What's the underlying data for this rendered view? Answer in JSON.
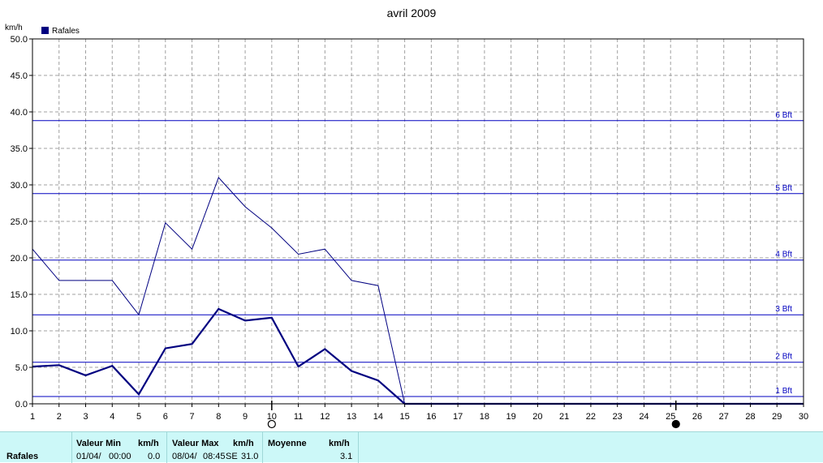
{
  "chart_data": {
    "type": "line",
    "title": "avril 2009",
    "ylabel": "km/h",
    "xlabel": "",
    "legend": {
      "position": "top-left",
      "entries": [
        {
          "label": "Rafales",
          "color": "#000080"
        }
      ]
    },
    "grid": true,
    "xlim": [
      1,
      30
    ],
    "ylim": [
      0,
      50
    ],
    "x_ticks": [
      "1",
      "2",
      "3",
      "4",
      "5",
      "6",
      "7",
      "8",
      "9",
      "10",
      "11",
      "12",
      "13",
      "14",
      "15",
      "16",
      "17",
      "18",
      "19",
      "20",
      "21",
      "22",
      "23",
      "24",
      "25",
      "26",
      "27",
      "28",
      "29",
      "30"
    ],
    "y_ticks": [
      "0.0",
      "5.0",
      "10.0",
      "15.0",
      "20.0",
      "25.0",
      "30.0",
      "35.0",
      "40.0",
      "45.0",
      "50.0"
    ],
    "series": [
      {
        "name": "",
        "style": "thin",
        "color": "#000080",
        "x": [
          1,
          2,
          3,
          4,
          5,
          6,
          7,
          8,
          9,
          10,
          11,
          12,
          13,
          14,
          15,
          30
        ],
        "y": [
          21.2,
          16.9,
          16.9,
          16.9,
          12.2,
          24.8,
          21.2,
          31.0,
          27.0,
          24.1,
          20.5,
          21.2,
          16.9,
          16.2,
          0,
          0
        ]
      },
      {
        "name": "",
        "style": "thick",
        "color": "#000080",
        "x": [
          1,
          2,
          3,
          4,
          5,
          6,
          7,
          8,
          9,
          10,
          11,
          12,
          13,
          14,
          15,
          30
        ],
        "y": [
          5.1,
          5.3,
          3.9,
          5.2,
          1.3,
          7.6,
          8.2,
          13.0,
          11.4,
          11.8,
          5.1,
          7.5,
          4.5,
          3.2,
          0,
          0
        ]
      }
    ],
    "reference_lines": [
      {
        "label": "1 Bft",
        "y": 1.0
      },
      {
        "label": "2 Bft",
        "y": 5.7
      },
      {
        "label": "3 Bft",
        "y": 12.2
      },
      {
        "label": "4 Bft",
        "y": 19.7
      },
      {
        "label": "5 Bft",
        "y": 28.8
      },
      {
        "label": "6 Bft",
        "y": 38.8
      }
    ],
    "moon_markers": [
      {
        "x": 10,
        "phase": "full-moon"
      },
      {
        "x": 25.2,
        "phase": "new-moon"
      }
    ],
    "colors": {
      "series": "#000080",
      "reference": "#0000c0",
      "grid": "#a0a0a0",
      "axis": "#000000"
    }
  },
  "stats": {
    "name": "Rafales",
    "min_header": "Valeur Min",
    "min_unit": "km/h",
    "min_date": "01/04/",
    "min_time": "00:00",
    "min_value": "0.0",
    "max_header": "Valeur Max",
    "max_unit": "km/h",
    "max_date": "08/04/",
    "max_time": "08:45",
    "max_dir": "SE",
    "max_value": "31.0",
    "avg_header": "Moyenne",
    "avg_unit": "km/h",
    "avg_value": "3.1"
  }
}
